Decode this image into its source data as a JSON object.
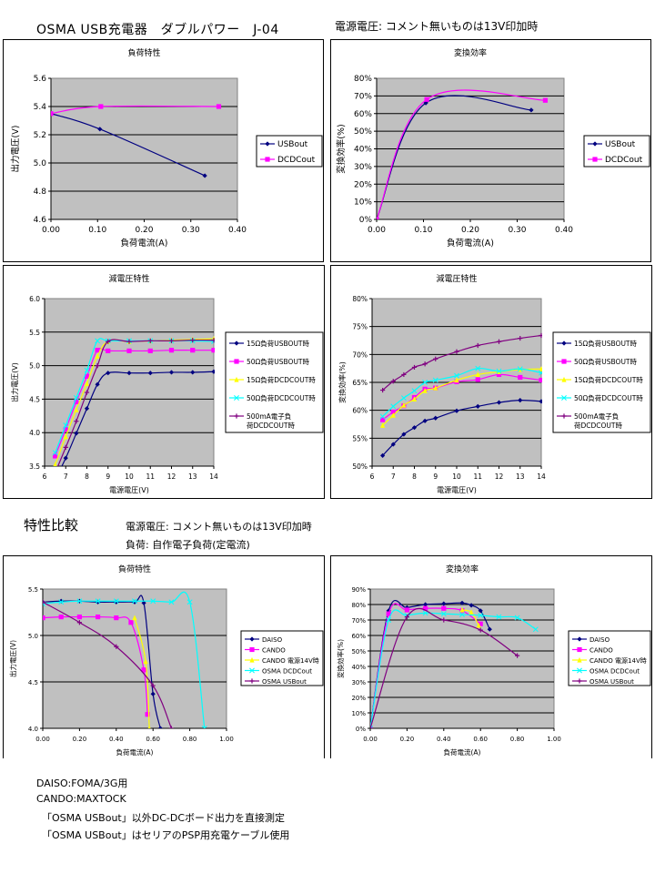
{
  "page": {
    "title": "OSMA USB充電器　ダブルパワー　J-04",
    "top_note": "電源電圧: コメント無いものは13V印加時",
    "section_title": "特性比較",
    "section_notes": [
      "電源電圧: コメント無いものは13V印加時",
      "負荷: 自作電子負荷(定電流)"
    ],
    "footnotes": [
      "DAISO:FOMA/3G用",
      "CANDO:MAXTOCK",
      "「OSMA USBout」以外DC-DCボード出力を直接測定",
      "「OSMA USBout」はセリアのPSP用充電ケーブル使用"
    ]
  },
  "colors": {
    "plot_bg": "#c0c0c0",
    "navy": "#000080",
    "magenta": "#ff00ff",
    "yellow": "#ffff00",
    "cyan": "#00ffff",
    "purple": "#800080"
  },
  "chart_data": [
    {
      "id": "c1",
      "type": "line",
      "title": "負荷特性",
      "xlabel": "負荷電流(A)",
      "ylabel": "出力電圧(V)",
      "xlim": [
        0,
        0.4
      ],
      "ylim": [
        4.6,
        5.6
      ],
      "xticks": [
        "0.00",
        "0.10",
        "0.20",
        "0.30",
        "0.40"
      ],
      "yticks": [
        "4.6",
        "4.8",
        "5.0",
        "5.2",
        "5.4",
        "5.6"
      ],
      "grid": true,
      "legend": "right",
      "series": [
        {
          "name": "USBout",
          "color": "navy",
          "marker": "diamond",
          "x": [
            0,
            0.105,
            0.33
          ],
          "y": [
            5.35,
            5.24,
            4.91
          ]
        },
        {
          "name": "DCDCout",
          "color": "magenta",
          "marker": "square",
          "x": [
            0,
            0.107,
            0.36
          ],
          "y": [
            5.35,
            5.4,
            5.4
          ]
        }
      ]
    },
    {
      "id": "c2",
      "type": "line",
      "title": "変換効率",
      "xlabel": "負荷電流(A)",
      "ylabel": "変換効率(%)",
      "xlim": [
        0,
        0.4
      ],
      "ylim": [
        0,
        80
      ],
      "xticks": [
        "0.00",
        "0.10",
        "0.20",
        "0.30",
        "0.40"
      ],
      "yticks": [
        "0%",
        "10%",
        "20%",
        "30%",
        "40%",
        "50%",
        "60%",
        "70%",
        "80%"
      ],
      "grid": true,
      "legend": "right",
      "series": [
        {
          "name": "USBout",
          "color": "navy",
          "marker": "diamond",
          "x": [
            0,
            0.105,
            0.33
          ],
          "y": [
            0,
            66,
            62
          ]
        },
        {
          "name": "DCDCout",
          "color": "magenta",
          "marker": "square",
          "x": [
            0,
            0.107,
            0.36
          ],
          "y": [
            0,
            68,
            67.5
          ]
        }
      ]
    },
    {
      "id": "c3",
      "type": "line",
      "title": "減電圧特性",
      "xlabel": "電源電圧(V)",
      "ylabel": "出力電圧(V)",
      "xlim": [
        6,
        14
      ],
      "ylim": [
        3.5,
        6.0
      ],
      "xticks": [
        "6",
        "7",
        "8",
        "9",
        "10",
        "11",
        "12",
        "13",
        "14"
      ],
      "yticks": [
        "3.5",
        "4.0",
        "4.5",
        "5.0",
        "5.5",
        "6.0"
      ],
      "grid": true,
      "legend": "right",
      "series": [
        {
          "name": "15Ω負荷USBOUT時",
          "color": "navy",
          "marker": "diamond",
          "x": [
            6.5,
            7,
            7.5,
            8,
            8.5,
            9,
            10,
            11,
            12,
            13,
            14
          ],
          "y": [
            3.3,
            3.62,
            3.99,
            4.36,
            4.72,
            4.89,
            4.89,
            4.89,
            4.9,
            4.9,
            4.91
          ]
        },
        {
          "name": "50Ω負荷USBOUT時",
          "color": "magenta",
          "marker": "square",
          "x": [
            6.5,
            7,
            7.5,
            8,
            8.5,
            9,
            10,
            11,
            12,
            13,
            14
          ],
          "y": [
            3.65,
            4.05,
            4.46,
            4.84,
            5.23,
            5.22,
            5.22,
            5.22,
            5.23,
            5.23,
            5.23
          ]
        },
        {
          "name": "15Ω負荷DCDCOUT時",
          "color": "yellow",
          "marker": "triangle",
          "x": [
            6.5,
            7,
            7.5,
            8,
            8.5,
            9,
            10,
            11,
            12,
            13,
            14
          ],
          "y": [
            3.52,
            3.94,
            4.34,
            4.73,
            5.14,
            5.36,
            5.36,
            5.37,
            5.38,
            5.39,
            5.4
          ]
        },
        {
          "name": "50Ω負荷DCDCOUT時",
          "color": "cyan",
          "marker": "x",
          "x": [
            6.5,
            7,
            7.5,
            8,
            8.5,
            9,
            10,
            11,
            12,
            13,
            14
          ],
          "y": [
            3.7,
            4.11,
            4.52,
            4.93,
            5.37,
            5.37,
            5.37,
            5.37,
            5.37,
            5.37,
            5.36
          ]
        },
        {
          "name": "500mA電子負荷DCDCOUT時",
          "color": "purple",
          "marker": "plus",
          "x": [
            6.5,
            7,
            7.5,
            8,
            8.5,
            9,
            10,
            11,
            12,
            13,
            14
          ],
          "y": [
            3.4,
            3.78,
            4.17,
            4.6,
            5.0,
            5.36,
            5.36,
            5.37,
            5.37,
            5.38,
            5.38
          ]
        }
      ]
    },
    {
      "id": "c4",
      "type": "line",
      "title": "減電圧特性",
      "xlabel": "電源電圧(V)",
      "ylabel": "変換効率(%)",
      "xlim": [
        6,
        14
      ],
      "ylim": [
        50,
        80
      ],
      "xticks": [
        "6",
        "7",
        "8",
        "9",
        "10",
        "11",
        "12",
        "13",
        "14"
      ],
      "yticks": [
        "50%",
        "55%",
        "60%",
        "65%",
        "70%",
        "75%",
        "80%"
      ],
      "grid": true,
      "legend": "right",
      "series": [
        {
          "name": "15Ω負荷USBOUT時",
          "color": "navy",
          "marker": "diamond",
          "x": [
            6.5,
            7,
            7.5,
            8,
            8.5,
            9,
            10,
            11,
            12,
            13,
            14
          ],
          "y": [
            51.9,
            53.9,
            55.7,
            56.9,
            58.1,
            58.6,
            59.9,
            60.7,
            61.4,
            61.8,
            61.6
          ]
        },
        {
          "name": "50Ω負荷USBOUT時",
          "color": "magenta",
          "marker": "square",
          "x": [
            6.5,
            7,
            7.5,
            8,
            8.5,
            9,
            10,
            11,
            12,
            13,
            14
          ],
          "y": [
            58.3,
            59.7,
            60.8,
            62.3,
            63.8,
            64.0,
            65.1,
            65.5,
            66.4,
            65.9,
            65.4
          ]
        },
        {
          "name": "15Ω負荷DCDCOUT時",
          "color": "yellow",
          "marker": "triangle",
          "x": [
            6.5,
            7,
            7.5,
            8,
            8.5,
            9,
            10,
            11,
            12,
            13,
            14
          ],
          "y": [
            57.3,
            59.1,
            60.9,
            62.0,
            63.5,
            64.0,
            65.4,
            66.4,
            66.9,
            67.3,
            67.4
          ]
        },
        {
          "name": "50Ω負荷DCDCOUT時",
          "color": "cyan",
          "marker": "x",
          "x": [
            6.5,
            7,
            7.5,
            8,
            8.5,
            9,
            10,
            11,
            12,
            13,
            14
          ],
          "y": [
            58.9,
            60.7,
            62.2,
            63.5,
            65.0,
            65.4,
            66.2,
            67.5,
            67.0,
            67.4,
            66.7
          ]
        },
        {
          "name": "500mA電子負荷DCDCOUT時",
          "color": "purple",
          "marker": "plus",
          "x": [
            6.5,
            7,
            7.5,
            8,
            8.5,
            9,
            10,
            11,
            12,
            13,
            14
          ],
          "y": [
            63.6,
            65.2,
            66.4,
            67.7,
            68.3,
            69.2,
            70.5,
            71.6,
            72.3,
            72.9,
            73.4
          ]
        }
      ]
    },
    {
      "id": "c5",
      "type": "line",
      "title": "負荷特性",
      "xlabel": "負荷電流(A)",
      "ylabel": "出力電圧(V)",
      "xlim": [
        0,
        1.0
      ],
      "ylim": [
        4.0,
        5.5
      ],
      "xticks": [
        "0.00",
        "0.20",
        "0.40",
        "0.60",
        "0.80",
        "1.00"
      ],
      "yticks": [
        "4.0",
        "4.5",
        "5.0",
        "5.5"
      ],
      "grid": true,
      "legend": "right",
      "series": [
        {
          "name": "DAISO",
          "color": "navy",
          "marker": "diamond",
          "x": [
            0,
            0.1,
            0.2,
            0.3,
            0.4,
            0.5,
            0.55,
            0.6,
            0.64
          ],
          "y": [
            5.36,
            5.37,
            5.37,
            5.36,
            5.36,
            5.36,
            5.35,
            4.37,
            4.0
          ]
        },
        {
          "name": "CANDO",
          "color": "magenta",
          "marker": "square",
          "x": [
            0,
            0.1,
            0.2,
            0.3,
            0.4,
            0.48,
            0.55,
            0.57
          ],
          "y": [
            5.19,
            5.2,
            5.2,
            5.2,
            5.19,
            5.14,
            4.63,
            4.15
          ]
        },
        {
          "name": "CANDO 電源14V時",
          "color": "yellow",
          "marker": "triangle",
          "x": [
            0.5,
            0.56,
            0.58
          ],
          "y": [
            5.19,
            4.72,
            4.0
          ]
        },
        {
          "name": "OSMA DCDCout",
          "color": "cyan",
          "marker": "x",
          "x": [
            0,
            0.1,
            0.2,
            0.3,
            0.4,
            0.5,
            0.6,
            0.7,
            0.8,
            0.88
          ],
          "y": [
            5.34,
            5.36,
            5.37,
            5.37,
            5.37,
            5.37,
            5.37,
            5.36,
            5.36,
            4.0
          ]
        },
        {
          "name": "OSMA USBout",
          "color": "purple",
          "marker": "plus",
          "x": [
            0,
            0.2,
            0.4,
            0.6,
            0.7
          ],
          "y": [
            5.36,
            5.14,
            4.88,
            4.46,
            4.0
          ]
        }
      ]
    },
    {
      "id": "c6",
      "type": "line",
      "title": "変換効率",
      "xlabel": "負荷電流(A)",
      "ylabel": "変換効率(%)",
      "xlim": [
        0,
        1.0
      ],
      "ylim": [
        0,
        90
      ],
      "xticks": [
        "0.00",
        "0.20",
        "0.40",
        "0.60",
        "0.80",
        "1.00"
      ],
      "yticks": [
        "0%",
        "10%",
        "20%",
        "30%",
        "40%",
        "50%",
        "60%",
        "70%",
        "80%",
        "90%"
      ],
      "grid": true,
      "legend": "right",
      "series": [
        {
          "name": "DAISO",
          "color": "navy",
          "marker": "diamond",
          "x": [
            0,
            0.1,
            0.2,
            0.3,
            0.4,
            0.5,
            0.55,
            0.6,
            0.65
          ],
          "y": [
            0,
            76,
            78,
            80,
            80.5,
            81,
            79.5,
            76,
            64
          ]
        },
        {
          "name": "CANDO",
          "color": "magenta",
          "marker": "square",
          "x": [
            0,
            0.1,
            0.2,
            0.3,
            0.4,
            0.5,
            0.6
          ],
          "y": [
            0,
            74,
            76.5,
            77.5,
            77.5,
            76,
            67.5
          ]
        },
        {
          "name": "CANDO 電源14V時",
          "color": "yellow",
          "marker": "triangle",
          "x": [
            0.5,
            0.55,
            0.59
          ],
          "y": [
            76.5,
            75,
            66.5
          ]
        },
        {
          "name": "OSMA DCDCout",
          "color": "cyan",
          "marker": "x",
          "x": [
            0,
            0.1,
            0.2,
            0.3,
            0.4,
            0.5,
            0.6,
            0.7,
            0.8,
            0.9
          ],
          "y": [
            0,
            70,
            73,
            74.5,
            74,
            73.5,
            73,
            72,
            71.5,
            64
          ]
        },
        {
          "name": "OSMA USBout",
          "color": "purple",
          "marker": "plus",
          "x": [
            0,
            0.2,
            0.4,
            0.6,
            0.8
          ],
          "y": [
            0,
            72,
            70,
            63.5,
            47
          ]
        }
      ]
    }
  ]
}
